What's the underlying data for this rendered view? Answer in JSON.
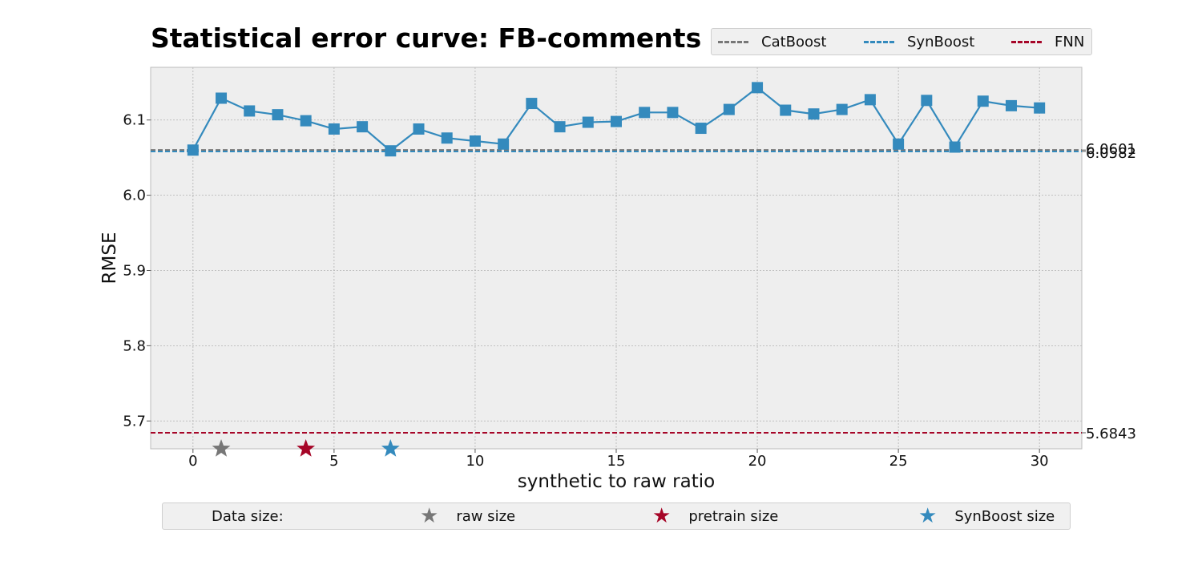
{
  "chart_data": {
    "type": "line",
    "title": "Statistical error curve: FB-comments",
    "xlabel": "synthetic to raw ratio",
    "ylabel": "RMSE",
    "xlim": [
      -1.5,
      31.5
    ],
    "ylim": [
      5.663,
      6.17
    ],
    "x_ticks": [
      0,
      5,
      10,
      15,
      20,
      25,
      30
    ],
    "y_ticks": [
      5.7,
      5.8,
      5.9,
      6.0,
      6.1
    ],
    "grid": true,
    "series": [
      {
        "name": "SynBoost",
        "color": "#348abd",
        "marker": "square",
        "x": [
          0,
          1,
          2,
          3,
          4,
          5,
          6,
          7,
          8,
          9,
          10,
          11,
          12,
          13,
          14,
          15,
          16,
          17,
          18,
          19,
          20,
          21,
          22,
          23,
          24,
          25,
          26,
          27,
          28,
          29,
          30
        ],
        "y": [
          6.06,
          6.129,
          6.112,
          6.107,
          6.099,
          6.088,
          6.091,
          6.059,
          6.088,
          6.076,
          6.072,
          6.068,
          6.122,
          6.091,
          6.097,
          6.098,
          6.11,
          6.11,
          6.089,
          6.114,
          6.143,
          6.113,
          6.108,
          6.114,
          6.127,
          6.068,
          6.126,
          6.064,
          6.125,
          6.119,
          6.116
        ]
      }
    ],
    "reference_lines": [
      {
        "name": "CatBoost",
        "value": 6.0601,
        "label": "6.0601",
        "color": "#777777"
      },
      {
        "name": "SynBoost",
        "value": 6.0582,
        "label": "6.0582",
        "color": "#348abd"
      },
      {
        "name": "FNN",
        "value": 5.6843,
        "label": "5.6843",
        "color": "#a60628"
      }
    ],
    "size_markers": [
      {
        "name": "raw size",
        "x": 1,
        "color": "#777777"
      },
      {
        "name": "pretrain size",
        "x": 4,
        "color": "#a60628"
      },
      {
        "name": "SynBoost size",
        "x": 7,
        "color": "#348abd"
      }
    ],
    "legend": {
      "placement": "top-right",
      "items": [
        {
          "label": "CatBoost",
          "color": "#777777"
        },
        {
          "label": "SynBoost",
          "color": "#348abd"
        },
        {
          "label": "FNN",
          "color": "#a60628"
        }
      ]
    },
    "size_legend": {
      "placement": "bottom",
      "title": "Data size:",
      "items": [
        {
          "label": "raw size",
          "color": "#777777"
        },
        {
          "label": "pretrain size",
          "color": "#a60628"
        },
        {
          "label": "SynBoost size",
          "color": "#348abd"
        }
      ]
    }
  }
}
